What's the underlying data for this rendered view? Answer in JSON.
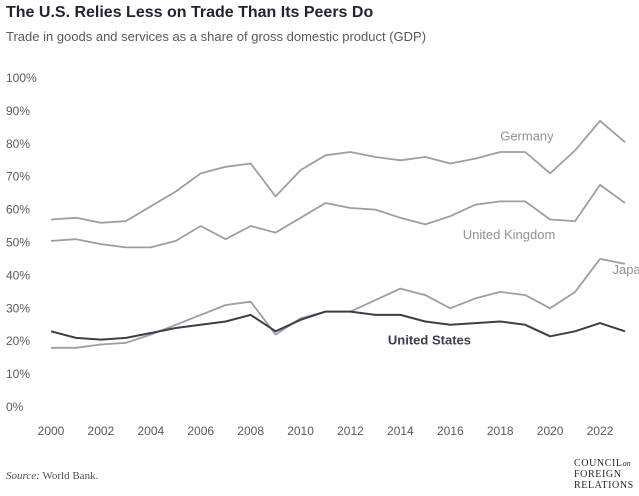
{
  "title": "The U.S. Relies Less on Trade Than Its Peers Do",
  "subtitle": "Trade in goods and services as a share of gross domestic product (GDP)",
  "source": {
    "label": "Source:",
    "text": "World Bank."
  },
  "logo": {
    "line1": "COUNCIL",
    "on": "on",
    "line2": "FOREIGN",
    "line3": "RELATIONS"
  },
  "chart_data": {
    "type": "line",
    "x": [
      2000,
      2001,
      2002,
      2003,
      2004,
      2005,
      2006,
      2007,
      2008,
      2009,
      2010,
      2011,
      2012,
      2013,
      2014,
      2015,
      2016,
      2017,
      2018,
      2019,
      2020,
      2021,
      2022,
      2023
    ],
    "xticks": [
      "2000",
      "2002",
      "2004",
      "2006",
      "2008",
      "2010",
      "2012",
      "2014",
      "2016",
      "2018",
      "2020",
      "2022"
    ],
    "yticks": [
      "0%",
      "10%",
      "20%",
      "30%",
      "40%",
      "50%",
      "60%",
      "70%",
      "80%",
      "90%",
      "100%"
    ],
    "ylim": [
      0,
      100
    ],
    "xlim": [
      2000,
      2023
    ],
    "grid": false,
    "legend": "inline labels",
    "series": [
      {
        "name": "Germany",
        "color": "#9b9ea3",
        "bold": false,
        "values": [
          57,
          57.5,
          56,
          56.5,
          61,
          65.5,
          71,
          73,
          74,
          64,
          72,
          76.5,
          77.5,
          76,
          75,
          76,
          74,
          75.5,
          77.5,
          77.5,
          71,
          78,
          87,
          80.5
        ]
      },
      {
        "name": "United Kingdom",
        "color": "#9b9ea3",
        "bold": false,
        "values": [
          50.5,
          51,
          49.5,
          48.5,
          48.5,
          50.5,
          55,
          51,
          55,
          53,
          57.5,
          62,
          60.5,
          60,
          57.5,
          55.5,
          58,
          61.5,
          62.5,
          62.5,
          57,
          56.5,
          67.5,
          62
        ]
      },
      {
        "name": "Japan",
        "color": "#9b9ea3",
        "bold": false,
        "values": [
          18,
          18,
          19,
          19.5,
          22,
          25,
          28,
          31,
          32,
          22,
          27,
          29,
          29,
          32.5,
          36,
          34,
          30,
          33,
          35,
          34,
          30,
          35,
          45,
          43.5
        ]
      },
      {
        "name": "United States",
        "color": "#3a3f4b",
        "bold": true,
        "values": [
          23,
          21,
          20.5,
          21,
          22.5,
          24,
          25,
          26,
          28,
          23,
          26.5,
          29,
          29,
          28,
          28,
          26,
          25,
          25.5,
          26,
          25,
          21.5,
          23,
          25.5,
          23
        ]
      }
    ],
    "label_anchor_years": [
      2013.5,
      2010.5,
      2011.5,
      2010.2
    ],
    "label_anchor_values": [
      81,
      51,
      40.5,
      19
    ]
  }
}
